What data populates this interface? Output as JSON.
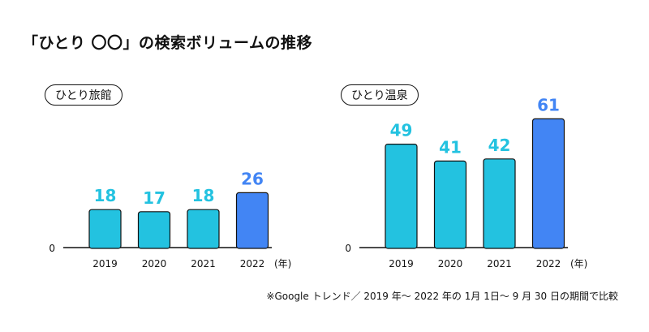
{
  "title": "「ひとり 〇〇」の検索ボリュームの推移",
  "footnote": "※Google トレンド／ 2019 年〜 2022 年の 1月 1日〜 9 月 30 日の期間で比較",
  "colors": {
    "bar": "#23c2e0",
    "highlight": "#4285f4",
    "label": "#23c2e0",
    "highlight_label": "#4285f4",
    "axis": "#111111"
  },
  "chart_data": [
    {
      "type": "bar",
      "title": "ひとり旅館",
      "categories": [
        "2019",
        "2020",
        "2021",
        "2022"
      ],
      "values": [
        18,
        17,
        18,
        26
      ],
      "highlight_index": 3,
      "unit": "(年)",
      "zero_label": "0",
      "ylim": [
        0,
        70
      ]
    },
    {
      "type": "bar",
      "title": "ひとり温泉",
      "categories": [
        "2019",
        "2020",
        "2021",
        "2022"
      ],
      "values": [
        49,
        41,
        42,
        61
      ],
      "highlight_index": 3,
      "unit": "(年)",
      "zero_label": "0",
      "ylim": [
        0,
        70
      ]
    }
  ]
}
